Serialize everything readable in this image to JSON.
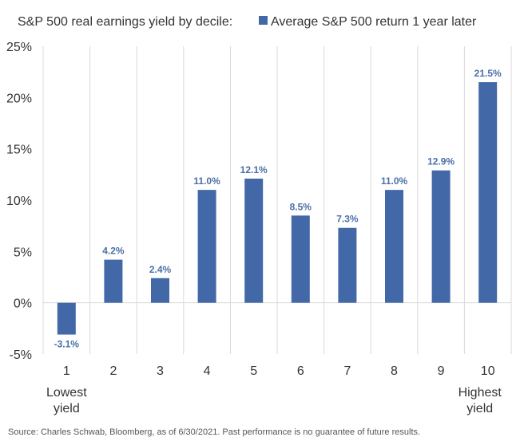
{
  "chart_data": {
    "type": "bar",
    "title": "S&P 500 real earnings yield by decile:",
    "legend": {
      "label": "Average S&P 500 return 1 year later",
      "placement": "top",
      "color": "#4368a8"
    },
    "categories": [
      "1",
      "2",
      "3",
      "4",
      "5",
      "6",
      "7",
      "8",
      "9",
      "10"
    ],
    "values": [
      -3.1,
      4.2,
      2.4,
      11.0,
      12.1,
      8.5,
      7.3,
      11.0,
      12.9,
      21.5
    ],
    "data_labels": [
      "-3.1%",
      "4.2%",
      "2.4%",
      "11.0%",
      "12.1%",
      "8.5%",
      "7.3%",
      "11.0%",
      "12.9%",
      "21.5%"
    ],
    "y_ticks": [
      -5,
      0,
      5,
      10,
      15,
      20,
      25
    ],
    "y_tick_labels": [
      "-5%",
      "0%",
      "5%",
      "10%",
      "15%",
      "20%",
      "25%"
    ],
    "ylim": [
      -5,
      25
    ],
    "x_sublabels": {
      "first": [
        "Lowest",
        "yield"
      ],
      "last": [
        "Highest",
        "yield"
      ]
    },
    "grid": "vertical",
    "bar_color": "#4368a8",
    "label_color": "#4a6fa8"
  },
  "source": "Source: Charles Schwab, Bloomberg, as of 6/30/2021. Past performance is no guarantee of future results."
}
